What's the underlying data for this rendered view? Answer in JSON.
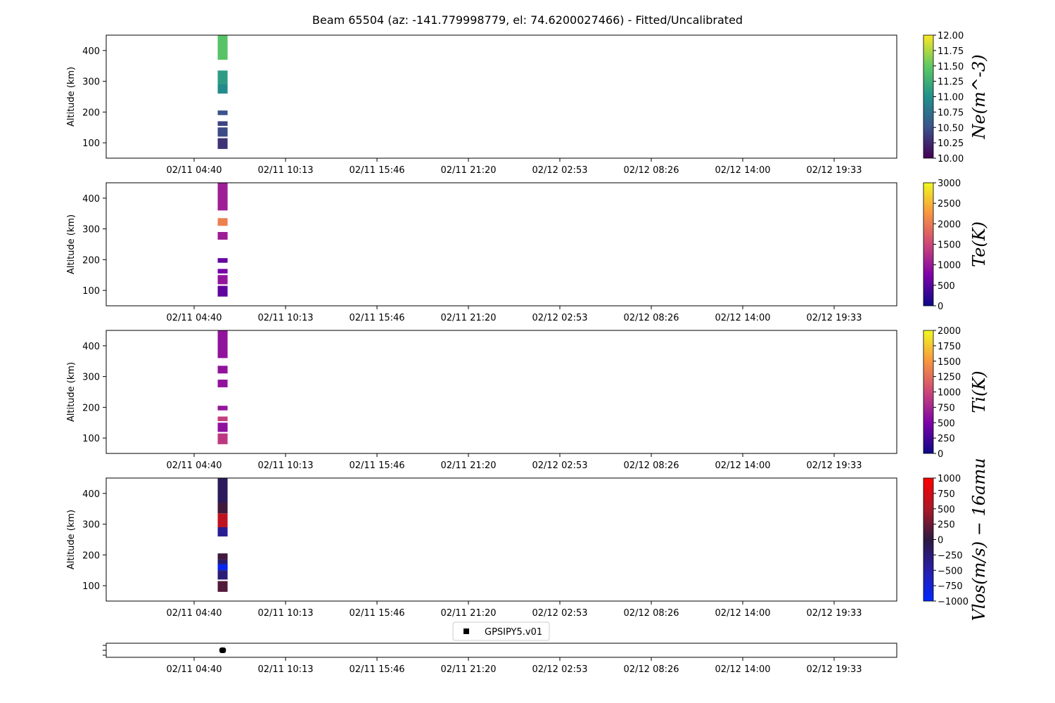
{
  "title": "Beam 65504 (az: -141.779998779, el: 74.6200027466) - Fitted/Uncalibrated",
  "x_tick_labels": [
    "02/11 04:40",
    "02/11 10:13",
    "02/11 15:46",
    "02/11 21:20",
    "02/12 02:53",
    "02/12 08:26",
    "02/12 14:00",
    "02/12 19:33"
  ],
  "chart_data": [
    {
      "type": "heatmap",
      "name": "Ne",
      "ylabel": "Altitude (km)",
      "colorbar_label": "Ne(m^-3)",
      "colormap": "viridis",
      "clim": [
        10.0,
        12.0
      ],
      "colorbar_ticks": [
        "10.00",
        "10.25",
        "10.50",
        "10.75",
        "11.00",
        "11.25",
        "11.50",
        "11.75",
        "12.00"
      ],
      "ylim": [
        50,
        450
      ],
      "y_ticks": [
        "100",
        "200",
        "300",
        "400"
      ],
      "x_time_hours_since_0210": [
        30.1,
        30.7
      ],
      "cells": [
        {
          "alt": [
            370,
            450
          ],
          "value": 11.45
        },
        {
          "alt": [
            290,
            335
          ],
          "value": 11.1
        },
        {
          "alt": [
            260,
            290
          ],
          "value": 10.95
        },
        {
          "alt": [
            190,
            205
          ],
          "value": 10.5
        },
        {
          "alt": [
            155,
            170
          ],
          "value": 10.4
        },
        {
          "alt": [
            120,
            150
          ],
          "value": 10.45
        },
        {
          "alt": [
            80,
            115
          ],
          "value": 10.3
        }
      ]
    },
    {
      "type": "heatmap",
      "name": "Te",
      "ylabel": "Altitude (km)",
      "colorbar_label": "Te(K)",
      "colormap": "plasma",
      "clim": [
        0,
        3000
      ],
      "colorbar_ticks": [
        "0",
        "500",
        "1000",
        "1500",
        "2000",
        "2500",
        "3000"
      ],
      "ylim": [
        50,
        450
      ],
      "y_ticks": [
        "100",
        "200",
        "300",
        "400"
      ],
      "x_time_hours_since_0210": [
        30.1,
        30.7
      ],
      "cells": [
        {
          "alt": [
            360,
            450
          ],
          "value": 1050
        },
        {
          "alt": [
            310,
            335
          ],
          "value": 2050
        },
        {
          "alt": [
            265,
            290
          ],
          "value": 1050
        },
        {
          "alt": [
            190,
            205
          ],
          "value": 600
        },
        {
          "alt": [
            155,
            170
          ],
          "value": 700
        },
        {
          "alt": [
            120,
            150
          ],
          "value": 950
        },
        {
          "alt": [
            80,
            115
          ],
          "value": 550
        }
      ]
    },
    {
      "type": "heatmap",
      "name": "Ti",
      "ylabel": "Altitude (km)",
      "colorbar_label": "Ti(K)",
      "colormap": "plasma",
      "clim": [
        0,
        2000
      ],
      "colorbar_ticks": [
        "0",
        "250",
        "500",
        "750",
        "1000",
        "1250",
        "1500",
        "1750",
        "2000"
      ],
      "ylim": [
        50,
        450
      ],
      "y_ticks": [
        "100",
        "200",
        "300",
        "400"
      ],
      "x_time_hours_since_0210": [
        30.1,
        30.7
      ],
      "cells": [
        {
          "alt": [
            360,
            450
          ],
          "value": 620
        },
        {
          "alt": [
            310,
            335
          ],
          "value": 620
        },
        {
          "alt": [
            265,
            290
          ],
          "value": 620
        },
        {
          "alt": [
            190,
            205
          ],
          "value": 640
        },
        {
          "alt": [
            155,
            170
          ],
          "value": 950
        },
        {
          "alt": [
            120,
            150
          ],
          "value": 600
        },
        {
          "alt": [
            80,
            115
          ],
          "value": 900
        }
      ]
    },
    {
      "type": "heatmap",
      "name": "Vlos",
      "ylabel": "Altitude (km)",
      "colorbar_label": "Vlos(m/s) − 16amu",
      "colormap": "blue-black-red",
      "clim": [
        -1000,
        1000
      ],
      "colorbar_ticks": [
        "−1000",
        "−750",
        "−500",
        "−250",
        "0",
        "250",
        "500",
        "750",
        "1000"
      ],
      "ylim": [
        50,
        450
      ],
      "y_ticks": [
        "100",
        "200",
        "300",
        "400"
      ],
      "x_time_hours_since_0210": [
        30.1,
        30.7
      ],
      "cells": [
        {
          "alt": [
            370,
            450
          ],
          "value": -120
        },
        {
          "alt": [
            335,
            370
          ],
          "value": 80
        },
        {
          "alt": [
            290,
            335
          ],
          "value": 620
        },
        {
          "alt": [
            260,
            290
          ],
          "value": -380
        },
        {
          "alt": [
            185,
            205
          ],
          "value": 80
        },
        {
          "alt": [
            150,
            185
          ],
          "value": -200
        },
        {
          "alt": [
            150,
            170
          ],
          "value": -900
        },
        {
          "alt": [
            120,
            150
          ],
          "value": -250
        },
        {
          "alt": [
            80,
            115
          ],
          "value": 150
        }
      ]
    }
  ],
  "legend_panel": {
    "legend_entry": "GPSIPY5.v01",
    "marker": "square",
    "marker_color": "#000000",
    "x_time_hours_since_0210": [
      30.2,
      30.6
    ]
  }
}
